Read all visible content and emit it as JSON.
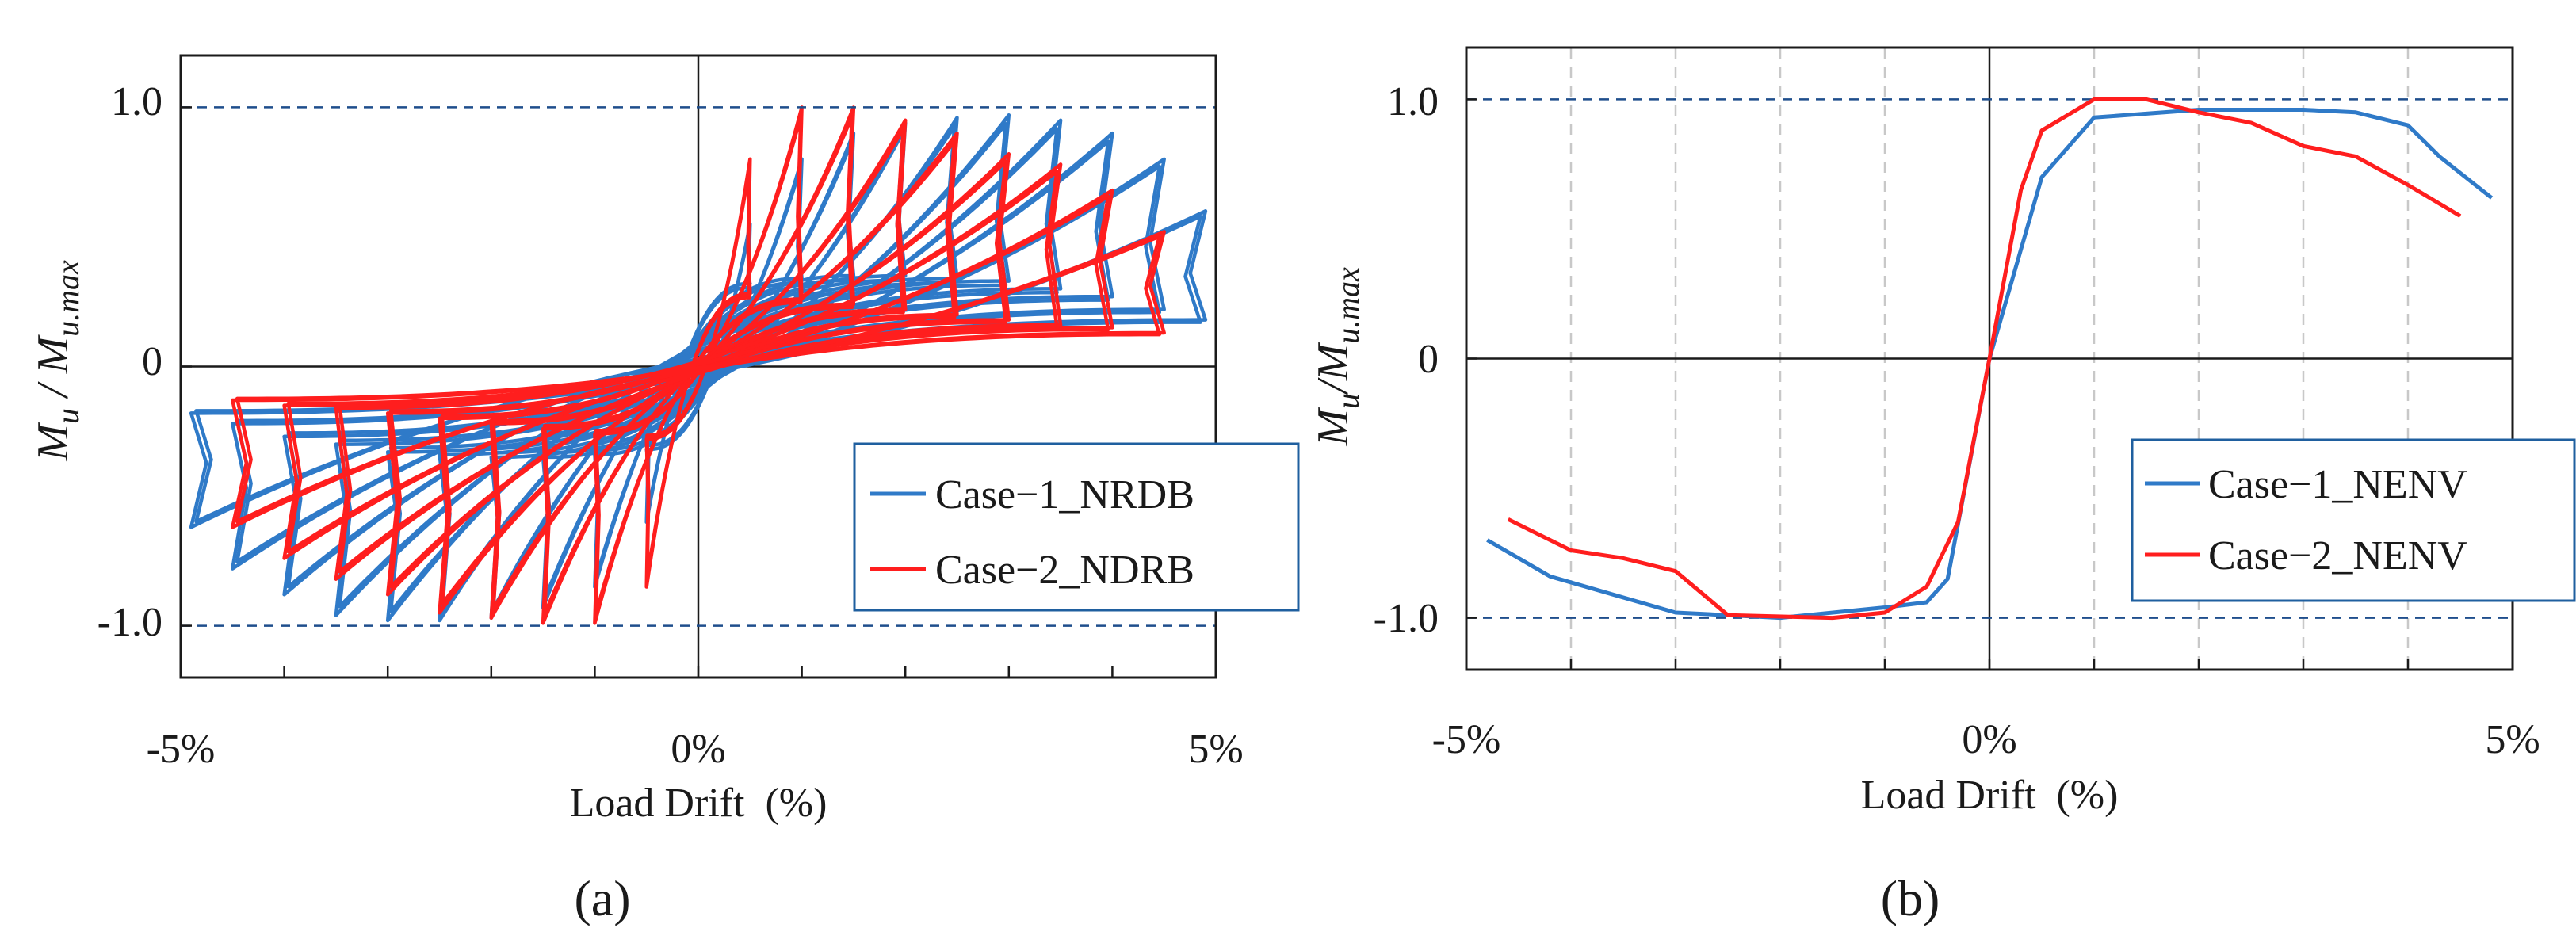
{
  "chart_data": [
    {
      "panel": "(a)",
      "type": "line",
      "chart_kind": "hysteresis",
      "xlabel": "Load Drift  (%)",
      "ylabel": "M_u / M_u.max",
      "xlim": [
        -5,
        5
      ],
      "ylim": [
        -1.2,
        1.2
      ],
      "x_tick_labels": [
        "-5%",
        "0%",
        "5%"
      ],
      "y_tick_labels": [
        "1.0",
        "0",
        "-1.0"
      ],
      "reference_lines": [
        1.0,
        -1.0
      ],
      "series": [
        {
          "name": "Case−1_NRDB",
          "color": "#2F7AC8",
          "amplitudes": [
            0.5,
            1.0,
            1.5,
            2.0,
            2.5,
            3.0,
            3.5,
            4.0,
            4.5,
            4.9
          ],
          "peak_pos": [
            0.55,
            0.8,
            0.9,
            0.94,
            0.96,
            0.97,
            0.95,
            0.9,
            0.8,
            0.6
          ],
          "peak_neg": [
            -0.6,
            -0.85,
            -0.93,
            -0.97,
            -0.98,
            -0.98,
            -0.96,
            -0.88,
            -0.78,
            -0.62
          ],
          "intercept": [
            0.32,
            0.34,
            0.35,
            0.35,
            0.34,
            0.33,
            0.3,
            0.27,
            0.22,
            0.18
          ]
        },
        {
          "name": "Case−2_NDRB",
          "color": "#FF1E1E",
          "amplitudes": [
            0.5,
            1.0,
            1.5,
            2.0,
            2.5,
            3.0,
            3.5,
            4.0,
            4.5
          ],
          "peak_pos": [
            0.8,
            1.0,
            1.0,
            0.95,
            0.9,
            0.82,
            0.78,
            0.68,
            0.52
          ],
          "peak_neg": [
            -0.85,
            -0.99,
            -0.99,
            -0.97,
            -0.95,
            -0.88,
            -0.82,
            -0.74,
            -0.62
          ],
          "intercept": [
            0.28,
            0.26,
            0.24,
            0.22,
            0.2,
            0.18,
            0.16,
            0.15,
            0.13
          ]
        }
      ]
    },
    {
      "panel": "(b)",
      "type": "line",
      "xlabel": "Load Drift  (%)",
      "ylabel": "M_u / M_u.max",
      "xlim": [
        -5,
        5
      ],
      "ylim": [
        -1.2,
        1.2
      ],
      "x_tick_labels": [
        "-5%",
        "0%",
        "5%"
      ],
      "y_tick_labels": [
        "1.0",
        "0",
        "-1.0"
      ],
      "reference_lines": [
        1.0,
        -1.0
      ],
      "series": [
        {
          "name": "Case−1_NENV",
          "color": "#2F7AC8",
          "x": [
            -4.8,
            -4.2,
            -3.0,
            -2.0,
            -1.0,
            -0.6,
            -0.4,
            0.0,
            0.5,
            1.0,
            2.0,
            3.0,
            3.5,
            4.0,
            4.3,
            4.8
          ],
          "y": [
            -0.7,
            -0.84,
            -0.98,
            -1.0,
            -0.96,
            -0.94,
            -0.85,
            0.0,
            0.7,
            0.93,
            0.96,
            0.96,
            0.95,
            0.9,
            0.78,
            0.62
          ]
        },
        {
          "name": "Case−2_NENV",
          "color": "#FF1E1E",
          "x": [
            -4.6,
            -4.0,
            -3.5,
            -3.0,
            -2.5,
            -1.5,
            -1.0,
            -0.6,
            -0.3,
            0.0,
            0.3,
            0.5,
            1.0,
            1.5,
            2.0,
            2.5,
            3.0,
            3.5,
            4.0,
            4.5
          ],
          "y": [
            -0.62,
            -0.74,
            -0.77,
            -0.82,
            -0.99,
            -1.0,
            -0.98,
            -0.88,
            -0.63,
            0.0,
            0.65,
            0.88,
            1.0,
            1.0,
            0.95,
            0.91,
            0.82,
            0.78,
            0.67,
            0.55
          ]
        }
      ]
    }
  ]
}
